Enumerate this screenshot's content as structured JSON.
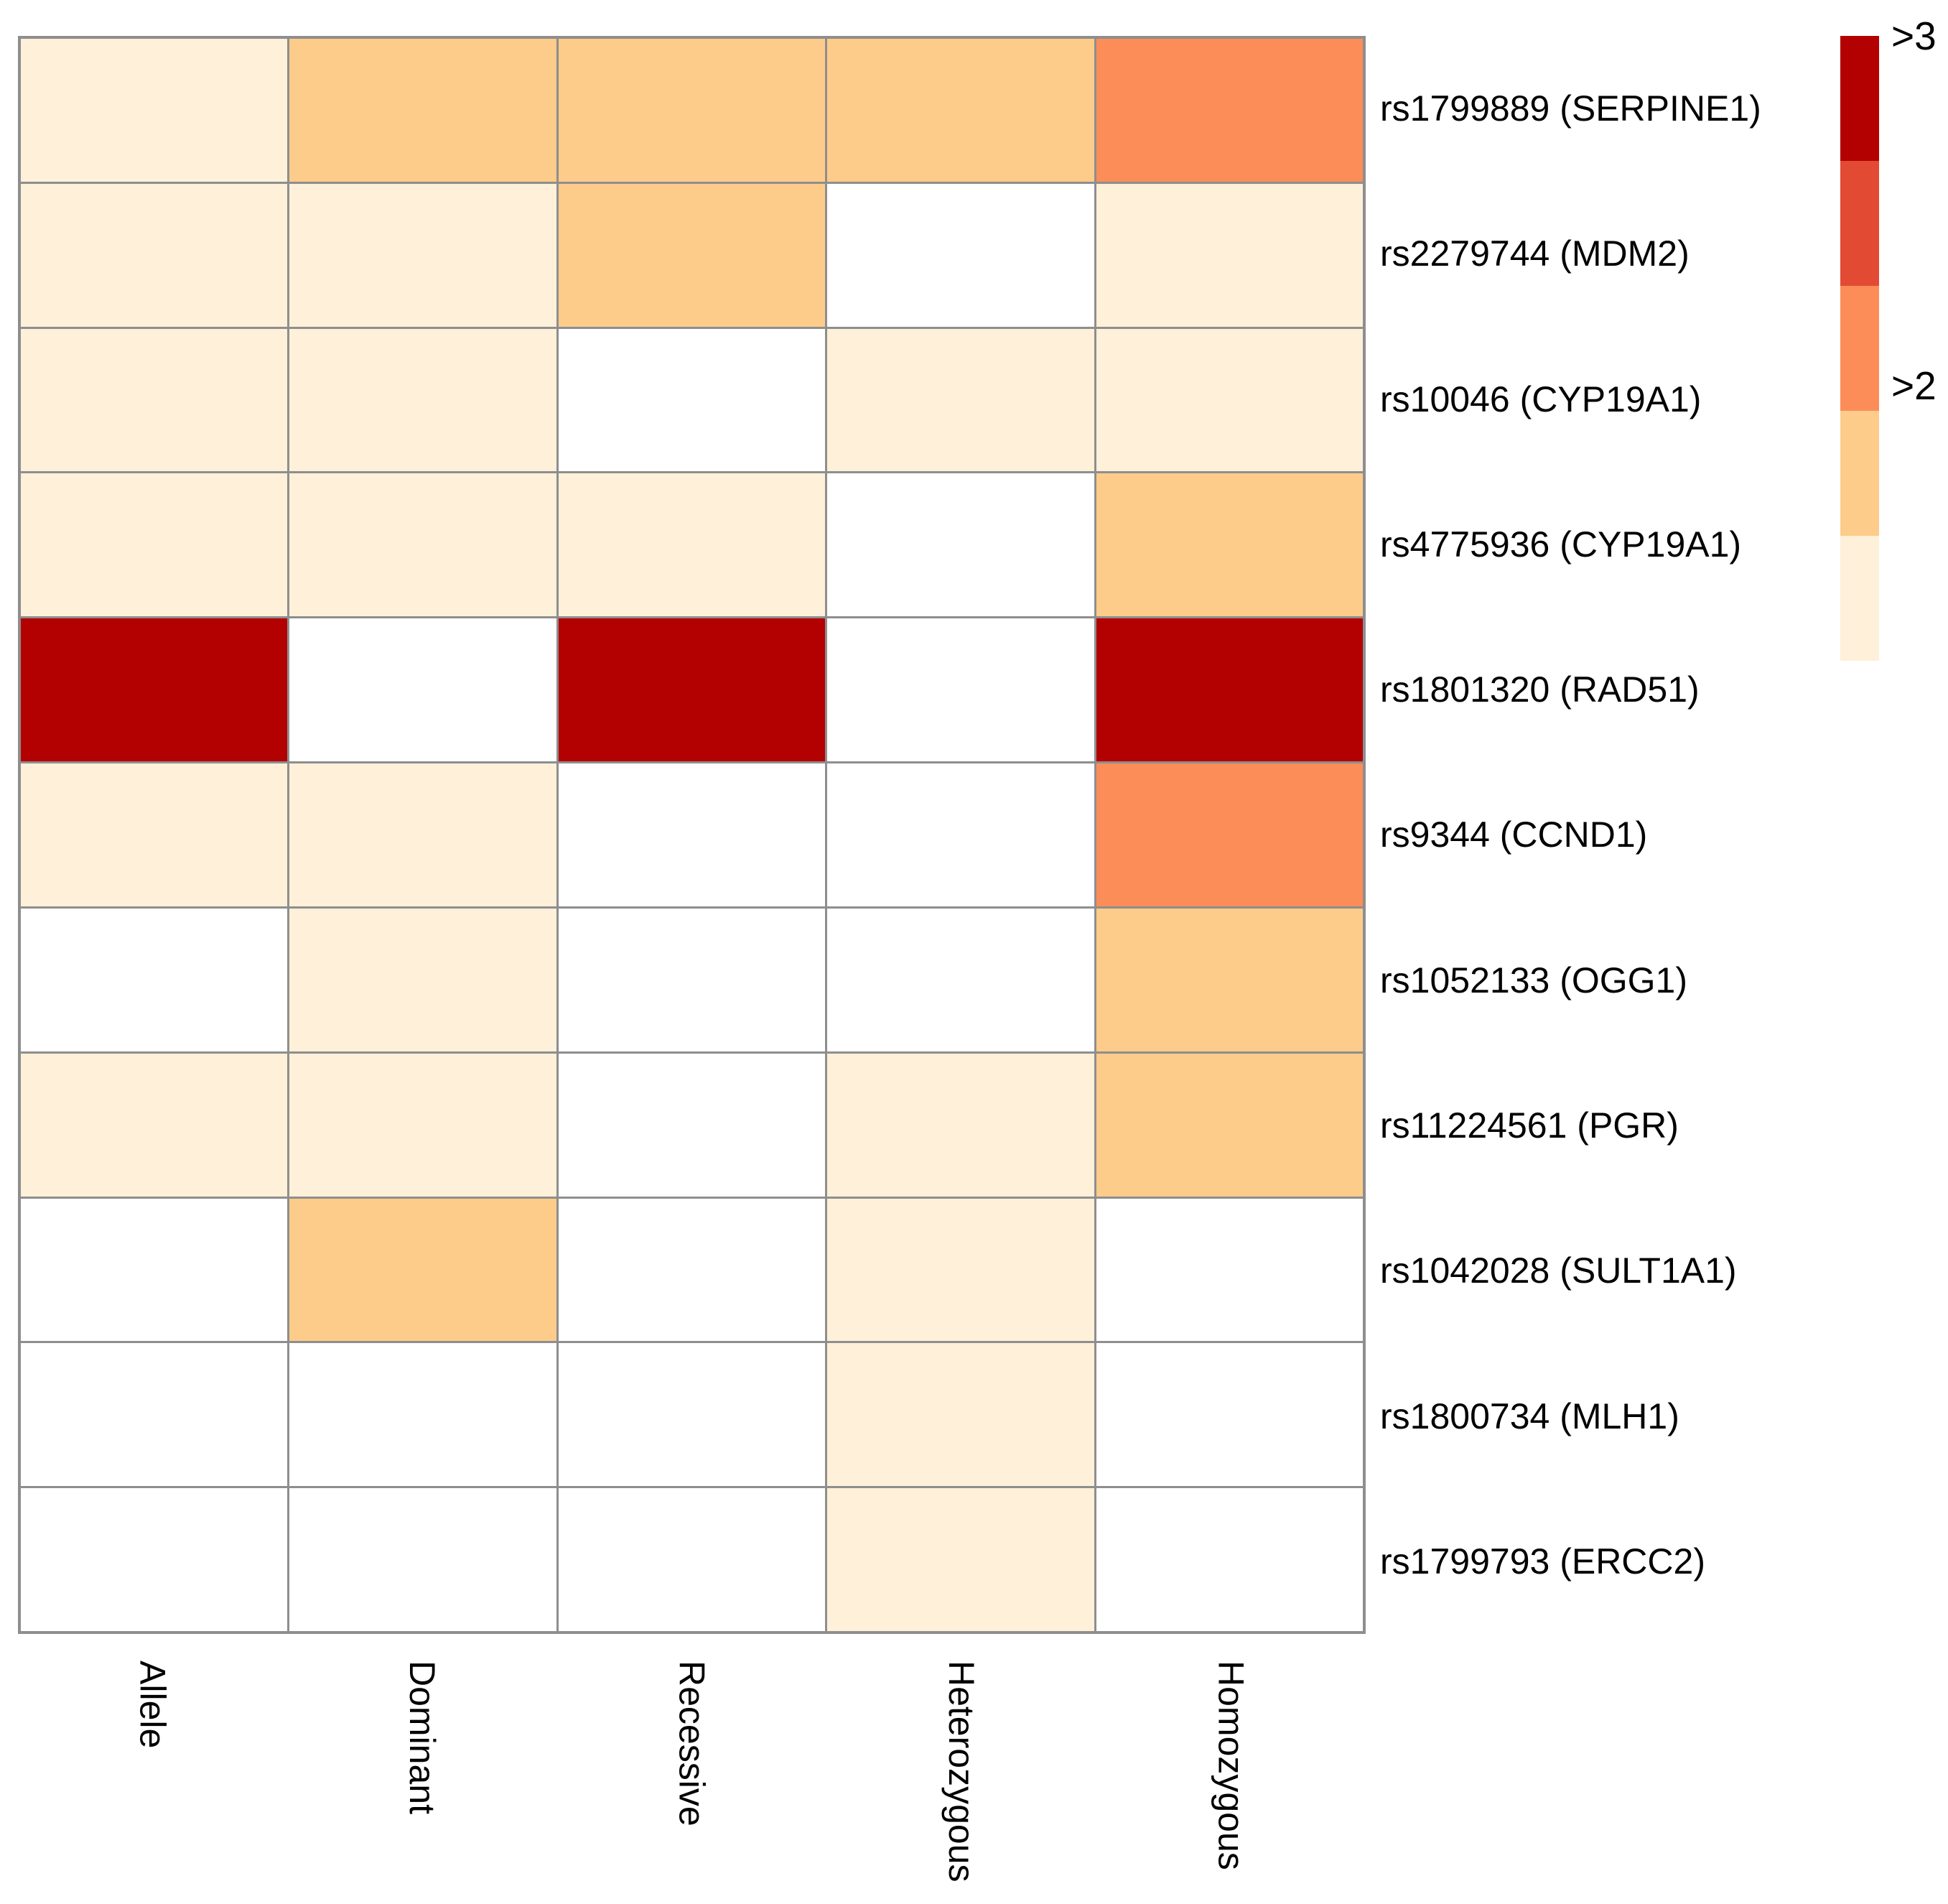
{
  "figure": {
    "description": "SNP association heatmap across genetic models",
    "background_color": "#ffffff",
    "grid_line_color": "#8e8e8e",
    "na_color": "#ffffff",
    "text_color": "#000000"
  },
  "legend": {
    "labels": [
      {
        "text": ">3",
        "anchor": "top"
      },
      {
        "text": ">2",
        "anchor": "middle"
      }
    ],
    "colors_top_to_bottom": [
      "#b30000",
      "#e34a33",
      "#fc8d59",
      "#fdcc8a",
      "#fef0d9"
    ]
  },
  "chart_data": {
    "type": "heatmap",
    "x_categories": [
      "Allele",
      "Dominant",
      "Recessive",
      "Heterozygous",
      "Homozygous"
    ],
    "y_categories": [
      "rs1799889 (SERPINE1)",
      "rs2279744 (MDM2)",
      "rs10046 (CYP19A1)",
      "rs4775936 (CYP19A1)",
      "rs1801320 (RAD51)",
      "rs9344 (CCND1)",
      "rs1052133 (OGG1)",
      "rs11224561 (PGR)",
      "rs1042028 (SULT1A1)",
      "rs1800734 (MLH1)",
      "rs1799793 (ERCC2)"
    ],
    "color_levels": [
      {
        "level": 1,
        "color": "#fef0d9",
        "label": ""
      },
      {
        "level": 2,
        "color": "#fdcc8a",
        "label": ""
      },
      {
        "level": 3,
        "color": "#fc8d59",
        "label": ">2"
      },
      {
        "level": 4,
        "color": "#e34a33",
        "label": ""
      },
      {
        "level": 5,
        "color": "#b30000",
        "label": ">3"
      }
    ],
    "na_level": 0,
    "values": [
      [
        1,
        2,
        2,
        2,
        3
      ],
      [
        1,
        1,
        2,
        0,
        1
      ],
      [
        1,
        1,
        0,
        1,
        1
      ],
      [
        1,
        1,
        1,
        0,
        2
      ],
      [
        5,
        0,
        5,
        0,
        5
      ],
      [
        1,
        1,
        0,
        0,
        3
      ],
      [
        0,
        1,
        0,
        0,
        2
      ],
      [
        1,
        1,
        0,
        1,
        2
      ],
      [
        0,
        2,
        0,
        1,
        0
      ],
      [
        0,
        0,
        0,
        1,
        0
      ],
      [
        0,
        0,
        0,
        1,
        0
      ]
    ],
    "legend_position": "right",
    "grid": true
  }
}
